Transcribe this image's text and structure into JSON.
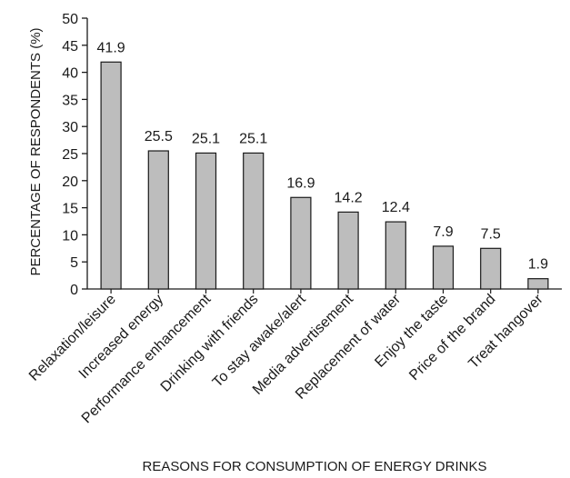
{
  "chart_data": {
    "type": "bar",
    "title": "",
    "xlabel": "REASONS FOR CONSUMPTION OF ENERGY DRINKS",
    "ylabel": "PERCENTAGE OF RESPONDENTS (%)",
    "ylim": [
      0,
      50
    ],
    "yticks": [
      "0",
      "5",
      "10",
      "15",
      "20",
      "25",
      "30",
      "35",
      "40",
      "45",
      "50"
    ],
    "categories": [
      "Relaxation/leisure",
      "Increased energy",
      "Performance enhancement",
      "Drinking with friends",
      "To stay awake/alert",
      "Media advertisement",
      "Replacement of water",
      "Enjoy the taste",
      "Price of the brand",
      "Treat hangover"
    ],
    "values": [
      41.9,
      25.5,
      25.1,
      25.1,
      16.9,
      14.2,
      12.4,
      7.9,
      7.5,
      1.9
    ],
    "data_labels": [
      "41.9",
      "25.5",
      "25.1",
      "25.1",
      "16.9",
      "14.2",
      "12.4",
      "7.9",
      "7.5",
      "1.9"
    ],
    "grid": false,
    "legend": "none",
    "colors": {
      "bar_fill": "#bdbdbd",
      "bar_stroke": "#1a1a1a",
      "axis": "#1a1a1a"
    }
  }
}
